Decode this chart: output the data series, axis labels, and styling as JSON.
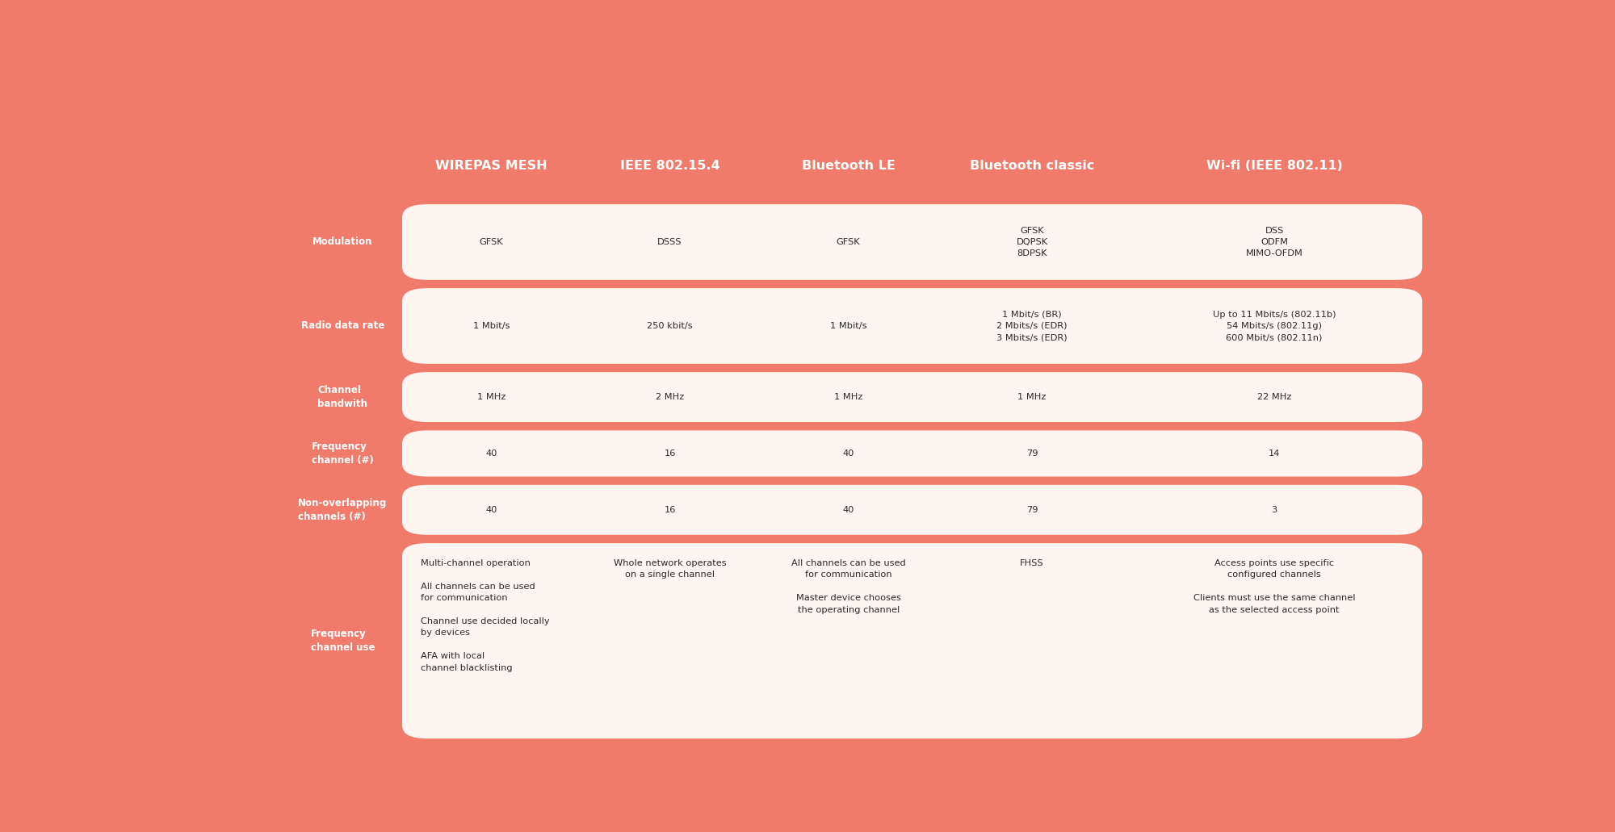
{
  "bg_color": "#F07B6A",
  "cell_bg": "#FDF5F0",
  "header_text_color": "#FFFFFF",
  "row_label_color": "#FFFFFF",
  "cell_text_color": "#2a2a2a",
  "columns": [
    "WIREPAS MESH",
    "IEEE 802.15.4",
    "Bluetooth LE",
    "Bluetooth classic",
    "Wi-fi (IEEE 802.11)"
  ],
  "rows": [
    {
      "label": "Modulation",
      "label_multiline": false,
      "values": [
        "GFSK",
        "DSSS",
        "GFSK",
        "GFSK\nDQPSK\n8DPSK",
        "DSS\nODFM\nMIMO-OFDM"
      ],
      "align": [
        "center",
        "center",
        "center",
        "center",
        "center"
      ]
    },
    {
      "label": "Radio data rate",
      "label_multiline": false,
      "values": [
        "1 Mbit/s",
        "250 kbit/s",
        "1 Mbit/s",
        "1 Mbit/s (BR)\n2 Mbits/s (EDR)\n3 Mbits/s (EDR)",
        "Up to 11 Mbits/s (802.11b)\n54 Mbits/s (802.11g)\n600 Mbit/s (802.11n)"
      ],
      "align": [
        "center",
        "center",
        "center",
        "center",
        "center"
      ]
    },
    {
      "label": "Channel\nbandwith",
      "label_multiline": true,
      "values": [
        "1 MHz",
        "2 MHz",
        "1 MHz",
        "1 MHz",
        "22 MHz"
      ],
      "align": [
        "center",
        "center",
        "center",
        "center",
        "center"
      ]
    },
    {
      "label": "Frequency\nchannel (#)",
      "label_multiline": true,
      "values": [
        "40",
        "16",
        "40",
        "79",
        "14"
      ],
      "align": [
        "center",
        "center",
        "center",
        "center",
        "center"
      ]
    },
    {
      "label": "Non-overlapping\nchannels (#)",
      "label_multiline": true,
      "values": [
        "40",
        "16",
        "40",
        "79",
        "3"
      ],
      "align": [
        "center",
        "center",
        "center",
        "center",
        "center"
      ]
    },
    {
      "label": "Frequency\nchannel use",
      "label_multiline": true,
      "values": [
        "Multi-channel operation\n\nAll channels can be used\nfor communication\n\nChannel use decided locally\nby devices\n\nAFA with local\nchannel blacklisting",
        "Whole network operates\non a single channel",
        "All channels can be used\nfor communication\n\nMaster device chooses\nthe operating channel",
        "FHSS",
        "Access points use specific\nconfigured channels\n\nClients must use the same channel\nas the selected access point"
      ],
      "align": [
        "left",
        "center",
        "center",
        "center",
        "center"
      ]
    }
  ],
  "figsize": [
    20.0,
    10.31
  ],
  "dpi": 100
}
